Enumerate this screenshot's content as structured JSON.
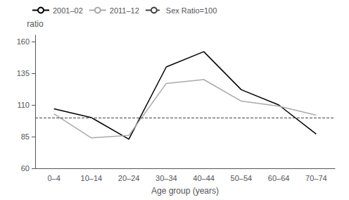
{
  "chart_data": {
    "type": "line",
    "categories": [
      "0–4",
      "10–14",
      "20–24",
      "30–34",
      "40–44",
      "50–54",
      "60–64",
      "70–74"
    ],
    "series": [
      {
        "name": "2001–02",
        "color": "#000000",
        "values": [
          107,
          100,
          83,
          140,
          152,
          122,
          110,
          87
        ]
      },
      {
        "name": "2011–12",
        "color": "#aaaaaa",
        "values": [
          103,
          84,
          86,
          127,
          130,
          113,
          109,
          102
        ]
      },
      {
        "name": "Sex Ratio=100",
        "type": "hline",
        "y": 100,
        "color": "#444444",
        "line_style": "dashed"
      }
    ],
    "xlabel": "Age group (years)",
    "ylabel": "ratio",
    "ylim": [
      60,
      165
    ],
    "yticks": [
      60,
      85,
      110,
      135,
      160
    ],
    "grid": false,
    "legend": "upper left"
  }
}
